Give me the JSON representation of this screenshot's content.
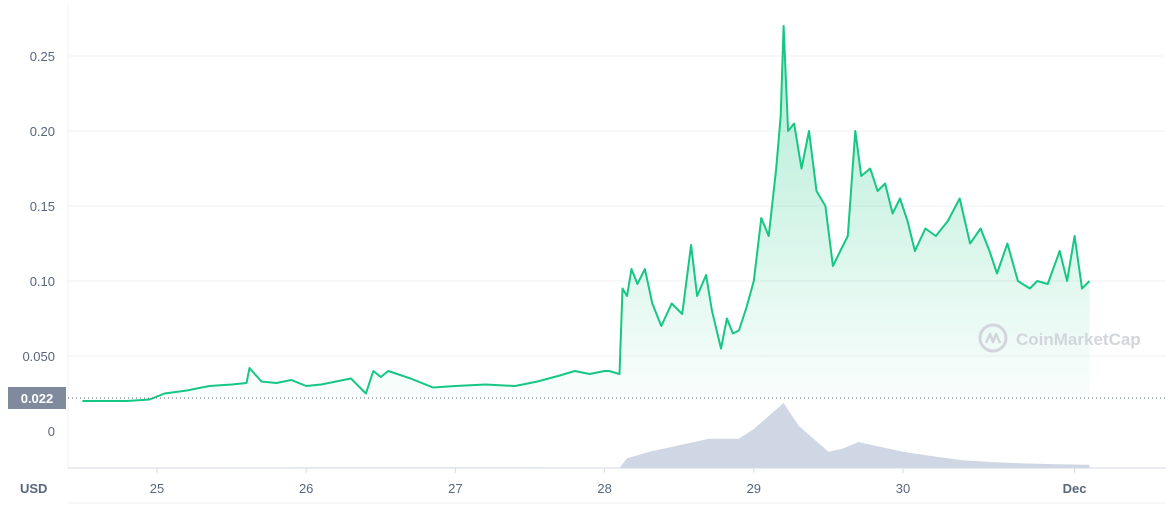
{
  "chart_data": {
    "type": "area",
    "x_unit_label": "USD",
    "xticks": [
      "25",
      "26",
      "27",
      "28",
      "29",
      "30",
      "Dec"
    ],
    "yticks": [
      "0",
      "0.050",
      "0.10",
      "0.15",
      "0.20",
      "0.25"
    ],
    "ylim": [
      0,
      0.28
    ],
    "grid": true,
    "current_price_label": "0.022",
    "current_price": 0.022,
    "colors": {
      "line": "#16c784",
      "fill_top": "#16c784",
      "volume": "#cfd6e4",
      "current_price_bg": "#808a9d",
      "grid": "#eff2f5"
    },
    "series": [
      {
        "values_x_days": [
          24.5,
          24.7,
          24.8,
          24.95,
          25.05,
          25.2,
          25.35,
          25.5,
          25.6,
          25.62,
          25.7,
          25.8,
          25.9,
          26.0,
          26.1,
          26.2,
          26.3,
          26.4,
          26.45,
          26.5,
          26.55,
          26.7,
          26.85,
          27.0,
          27.2,
          27.4,
          27.55,
          27.7,
          27.8,
          27.9,
          28.0,
          28.03,
          28.1,
          28.12,
          28.15,
          28.18,
          28.22,
          28.27,
          28.32,
          28.38,
          28.45,
          28.52,
          28.58,
          28.62,
          28.68,
          28.72,
          28.78,
          28.82,
          28.86,
          28.9,
          28.95,
          29.0,
          29.05,
          29.1,
          29.15,
          29.18,
          29.2,
          29.23,
          29.27,
          29.32,
          29.37,
          29.42,
          29.48,
          29.53,
          29.58,
          29.63,
          29.68,
          29.72,
          29.78,
          29.83,
          29.88,
          29.93,
          29.98,
          30.03,
          30.08,
          30.15,
          30.22,
          30.3,
          30.38,
          30.45,
          30.52,
          30.58,
          30.63,
          30.7,
          30.77,
          30.85,
          30.9,
          30.97,
          31.05,
          31.1,
          31.15,
          31.2,
          31.25
        ],
        "values": [
          0.02,
          0.02,
          0.02,
          0.021,
          0.025,
          0.027,
          0.03,
          0.031,
          0.032,
          0.042,
          0.033,
          0.032,
          0.034,
          0.03,
          0.031,
          0.033,
          0.035,
          0.025,
          0.04,
          0.036,
          0.04,
          0.035,
          0.029,
          0.03,
          0.031,
          0.03,
          0.033,
          0.037,
          0.04,
          0.038,
          0.04,
          0.04,
          0.038,
          0.095,
          0.09,
          0.108,
          0.098,
          0.108,
          0.085,
          0.07,
          0.085,
          0.078,
          0.124,
          0.09,
          0.104,
          0.08,
          0.055,
          0.075,
          0.065,
          0.067,
          0.082,
          0.1,
          0.142,
          0.13,
          0.175,
          0.21,
          0.27,
          0.2,
          0.205,
          0.175,
          0.2,
          0.16,
          0.15,
          0.11,
          0.12,
          0.13,
          0.2,
          0.17,
          0.175,
          0.16,
          0.165,
          0.145,
          0.155,
          0.14,
          0.12,
          0.135,
          0.13,
          0.14,
          0.155,
          0.125,
          0.135,
          0.12,
          0.105,
          0.125,
          0.1,
          0.095,
          0.1,
          0.098,
          0.12,
          0.1,
          0.13,
          0.095,
          0.1
        ]
      }
    ],
    "volume_x_days": [
      24.5,
      25.0,
      25.5,
      26.0,
      26.5,
      27.0,
      27.5,
      28.0,
      28.1,
      28.15,
      28.3,
      28.5,
      28.7,
      28.9,
      29.0,
      29.1,
      29.2,
      29.3,
      29.4,
      29.5,
      29.6,
      29.7,
      29.8,
      29.9,
      30.0,
      30.2,
      30.4,
      30.6,
      30.8,
      31.0,
      31.25
    ],
    "volume_values": [
      0.0,
      0.0,
      0.005,
      0.01,
      0.01,
      0.01,
      0.01,
      0.005,
      0.0,
      0.15,
      0.25,
      0.35,
      0.45,
      0.45,
      0.6,
      0.8,
      1.0,
      0.65,
      0.45,
      0.25,
      0.3,
      0.4,
      0.35,
      0.3,
      0.25,
      0.18,
      0.12,
      0.09,
      0.07,
      0.06,
      0.05
    ]
  },
  "watermark": {
    "text": "CoinMarketCap",
    "icon": "coinmarketcap-logo-icon"
  }
}
